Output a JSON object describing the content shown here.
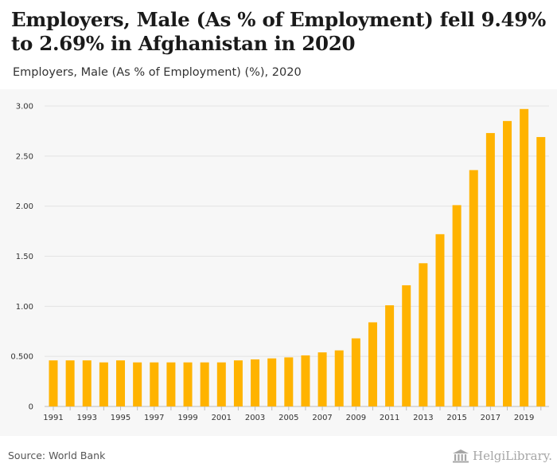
{
  "headline": "Employers, Male (As % of Employment) fell 9.49% to 2.69% in Afghanistan in 2020",
  "subtitle": "Employers, Male (As % of Employment) (%), 2020",
  "source": "Source: World Bank",
  "logo_text": "HelgiLibrary.",
  "colors": {
    "bar": "#FFB300",
    "grid": "#e3e3e3",
    "axis": "#bdbdbd",
    "tick_text": "#333333"
  },
  "chart_data": {
    "type": "bar",
    "title": "Employers, Male (As % of Employment) (%), 2020",
    "xlabel": "",
    "ylabel": "",
    "ylim": [
      0,
      3.0
    ],
    "yticks": [
      0,
      0.5,
      1.0,
      1.5,
      2.0,
      2.5,
      3.0
    ],
    "ytick_labels": [
      "0",
      "0.500",
      "1.00",
      "1.50",
      "2.00",
      "2.50",
      "3.00"
    ],
    "grid": true,
    "categories": [
      "1991",
      "1992",
      "1993",
      "1994",
      "1995",
      "1996",
      "1997",
      "1998",
      "1999",
      "2000",
      "2001",
      "2002",
      "2003",
      "2004",
      "2005",
      "2006",
      "2007",
      "2008",
      "2009",
      "2010",
      "2011",
      "2012",
      "2013",
      "2014",
      "2015",
      "2016",
      "2017",
      "2018",
      "2019",
      "2020"
    ],
    "xtick_labels": [
      "1991",
      "",
      "1993",
      "",
      "1995",
      "",
      "1997",
      "",
      "1999",
      "",
      "2001",
      "",
      "2003",
      "",
      "2005",
      "",
      "2007",
      "",
      "2009",
      "",
      "2011",
      "",
      "2013",
      "",
      "2015",
      "",
      "2017",
      "",
      "2019",
      ""
    ],
    "values": [
      0.46,
      0.46,
      0.46,
      0.44,
      0.46,
      0.44,
      0.44,
      0.44,
      0.44,
      0.44,
      0.44,
      0.46,
      0.47,
      0.48,
      0.49,
      0.51,
      0.54,
      0.56,
      0.68,
      0.84,
      1.01,
      1.21,
      1.43,
      1.72,
      2.01,
      2.36,
      2.73,
      2.85,
      2.97,
      2.69
    ]
  }
}
